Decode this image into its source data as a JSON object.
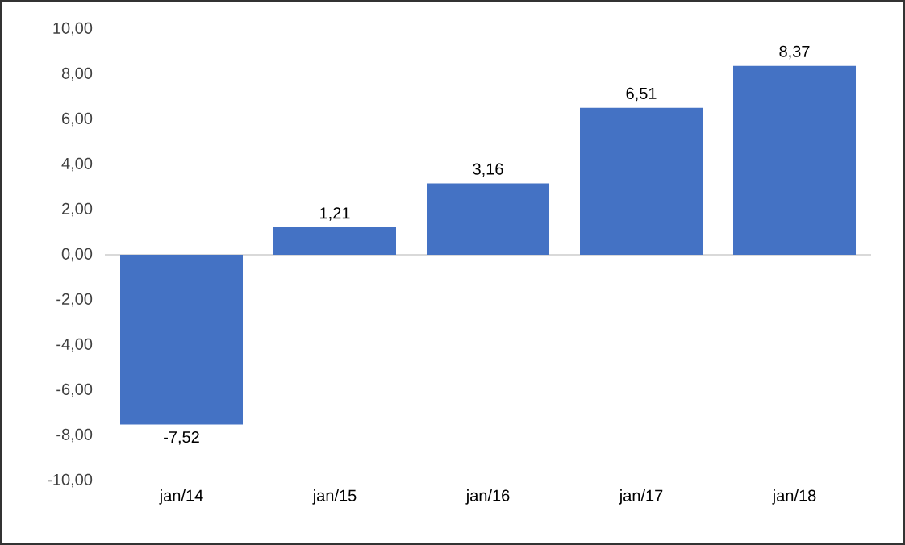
{
  "chart_data": {
    "type": "bar",
    "categories": [
      "jan/14",
      "jan/15",
      "jan/16",
      "jan/17",
      "jan/18"
    ],
    "values": [
      -7.52,
      1.21,
      3.16,
      6.51,
      8.37
    ],
    "color": "#4472c4",
    "value_labels": [
      "-7,52",
      "1,21",
      "3,16",
      "6,51",
      "8,37"
    ],
    "ylim": [
      -10,
      10
    ],
    "yticks": [
      {
        "value": -10,
        "label": "-10,00"
      },
      {
        "value": -8,
        "label": "-8,00"
      },
      {
        "value": -6,
        "label": "-6,00"
      },
      {
        "value": -4,
        "label": "-4,00"
      },
      {
        "value": -2,
        "label": "-2,00"
      },
      {
        "value": 0,
        "label": "0,00"
      },
      {
        "value": 2,
        "label": "2,00"
      },
      {
        "value": 4,
        "label": "4,00"
      },
      {
        "value": 6,
        "label": "6,00"
      },
      {
        "value": 8,
        "label": "8,00"
      },
      {
        "value": 10,
        "label": "10,00"
      }
    ]
  }
}
